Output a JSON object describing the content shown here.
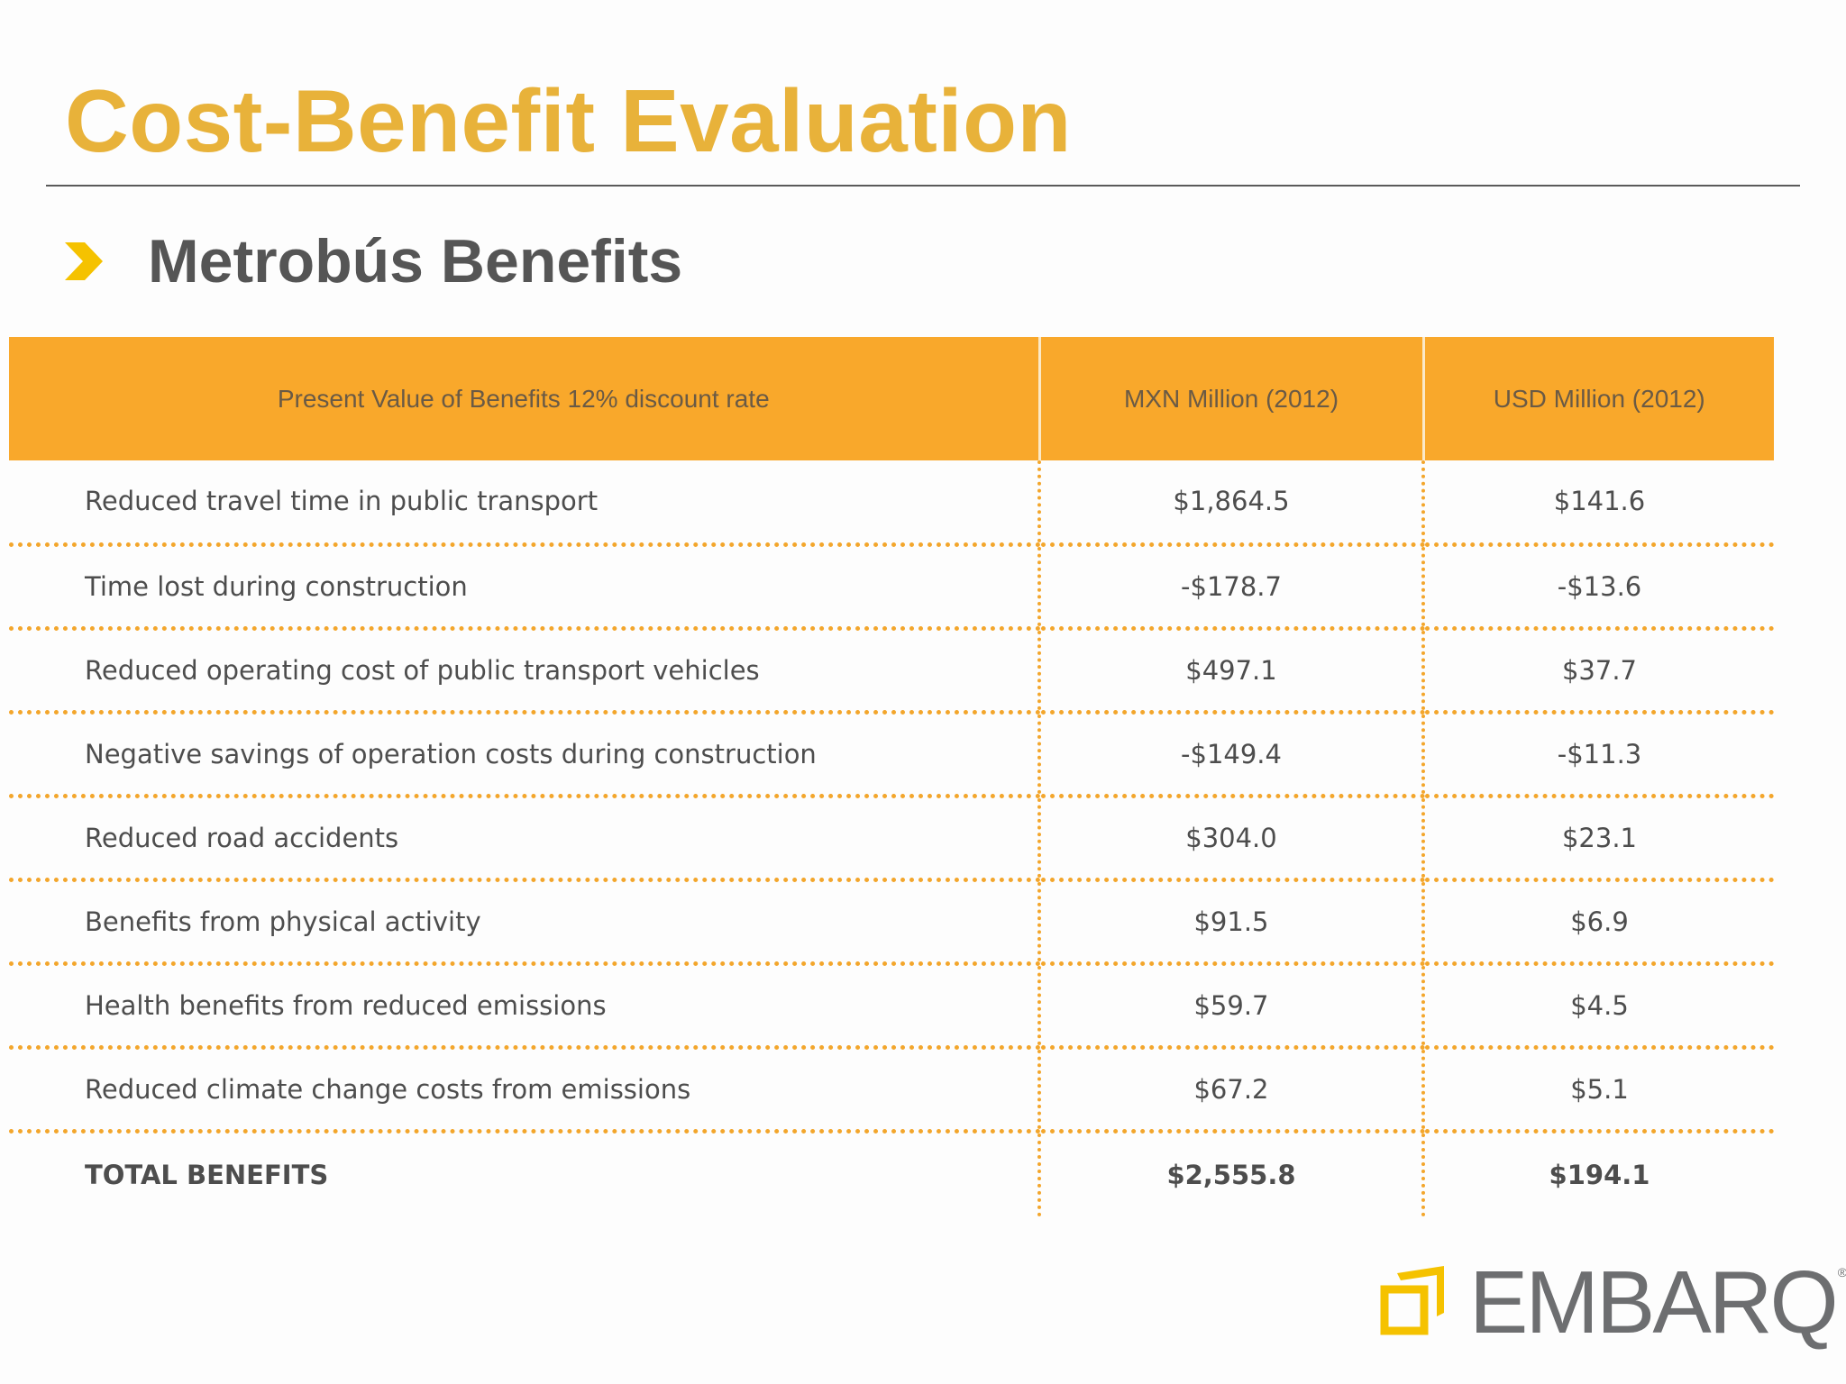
{
  "slide": {
    "title": "Cost-Benefit Evaluation",
    "subtitle": "Metrobús Benefits",
    "bullet_icon": "chevron-right-icon"
  },
  "colors": {
    "title": "#e8b23a",
    "header_fill": "#f9a82b",
    "dotted_rule": "#f3a62c",
    "text": "#4d4d4d"
  },
  "table": {
    "headers": [
      "Present Value of Benefits 12% discount rate",
      "MXN Million (2012)",
      "USD Million (2012)"
    ],
    "rows": [
      {
        "label": "Reduced travel time in public transport",
        "mxn": "$1,864.5",
        "usd": "$141.6"
      },
      {
        "label": "Time lost during construction",
        "mxn": "-$178.7",
        "usd": "-$13.6"
      },
      {
        "label": "Reduced operating cost of public transport vehicles",
        "mxn": "$497.1",
        "usd": "$37.7"
      },
      {
        "label": "Negative savings of operation costs during construction",
        "mxn": "-$149.4",
        "usd": "-$11.3"
      },
      {
        "label": "Reduced road accidents",
        "mxn": "$304.0",
        "usd": "$23.1"
      },
      {
        "label": "Benefits from physical activity",
        "mxn": "$91.5",
        "usd": "$6.9"
      },
      {
        "label": "Health benefits from reduced emissions",
        "mxn": "$59.7",
        "usd": "$4.5"
      },
      {
        "label": "Reduced climate change costs from emissions",
        "mxn": "$67.2",
        "usd": "$5.1"
      },
      {
        "label": "TOTAL BENEFITS",
        "mxn": "$2,555.8",
        "usd": "$194.1"
      }
    ]
  },
  "logo": {
    "text": "EMBARQ",
    "registered": "®",
    "icon": "embarq-logo-icon"
  }
}
